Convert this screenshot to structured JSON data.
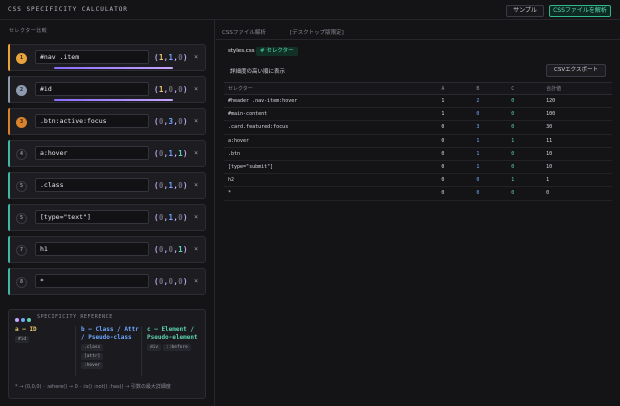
{
  "app": {
    "title": "CSS SPECIFICITY CALCULATOR",
    "sample_button": "サンプル",
    "csv_button": "CSSファイルを解析"
  },
  "left": {
    "label": "セレクター比較",
    "selectors": [
      {
        "rank": "1",
        "value": "#nav .item",
        "spec": [
          "1",
          "1",
          "0"
        ],
        "accent": "#e8a33a",
        "bar": 0.85
      },
      {
        "rank": "2",
        "value": "#id",
        "spec": [
          "1",
          "0",
          "0"
        ],
        "accent": "#8d9ab0",
        "bar": 0.85
      },
      {
        "rank": "3",
        "value": ".btn:active:focus",
        "spec": [
          "0",
          "3",
          "0"
        ],
        "accent": "#d9822b",
        "bar": 0.0
      },
      {
        "rank": "4",
        "value": "a:hover",
        "spec": [
          "0",
          "1",
          "1"
        ],
        "accent": "#3fb8a6",
        "bar": 0.0
      },
      {
        "rank": "5",
        "value": ".class",
        "spec": [
          "0",
          "1",
          "0"
        ],
        "accent": "#3fb8a6",
        "bar": 0.0
      },
      {
        "rank": "5",
        "value": "[type=\"text\"]",
        "spec": [
          "0",
          "1",
          "0"
        ],
        "accent": "#3fb8a6",
        "bar": 0.0
      },
      {
        "rank": "7",
        "value": "h1",
        "spec": [
          "0",
          "0",
          "1"
        ],
        "accent": "#3fb8a6",
        "bar": 0.0
      },
      {
        "rank": "8",
        "value": "*",
        "spec": [
          "0",
          "0",
          "0"
        ],
        "accent": "#3fb8a6",
        "bar": 0.0
      }
    ]
  },
  "reference": {
    "title": "SPECIFICITY REFERENCE",
    "cols": [
      {
        "head": "a — ID",
        "color": "#e8c86a",
        "tags": [
          "#id"
        ]
      },
      {
        "head": "b — Class / Attr / Pseudo-class",
        "color": "#6fa8ff",
        "tags": [
          ".class",
          "[attr]",
          ":hover"
        ]
      },
      {
        "head": "c — Element / Pseudo-element",
        "color": "#5fd4b0",
        "tags": [
          "div",
          "::before"
        ]
      }
    ],
    "note": "* → (0,0,0) · :where() → 0 · :is() :not() :has() → 引数の最大詳細度"
  },
  "right": {
    "header": "CSSファイル解析",
    "mode": "[デスクトップ版限定]",
    "file_tab": "styles.css",
    "selector_tab": "# セレクター",
    "checkbox_label": "詳細度の高い順に表示",
    "export_button": "CSVエクスポート",
    "columns": [
      "セレクター",
      "A",
      "B",
      "C",
      "合計値"
    ],
    "rows": [
      [
        "#header .nav-item:hover",
        "1",
        "2",
        "0",
        "120"
      ],
      [
        "#main-content",
        "1",
        "0",
        "0",
        "100"
      ],
      [
        ".card.featured:focus",
        "0",
        "3",
        "0",
        "30"
      ],
      [
        "a:hover",
        "0",
        "1",
        "1",
        "11"
      ],
      [
        ".btn",
        "0",
        "1",
        "0",
        "10"
      ],
      [
        "[type=\"submit\"]",
        "0",
        "1",
        "0",
        "10"
      ],
      [
        "h2",
        "0",
        "0",
        "1",
        "1"
      ],
      [
        "*",
        "0",
        "0",
        "0",
        "0"
      ]
    ]
  }
}
